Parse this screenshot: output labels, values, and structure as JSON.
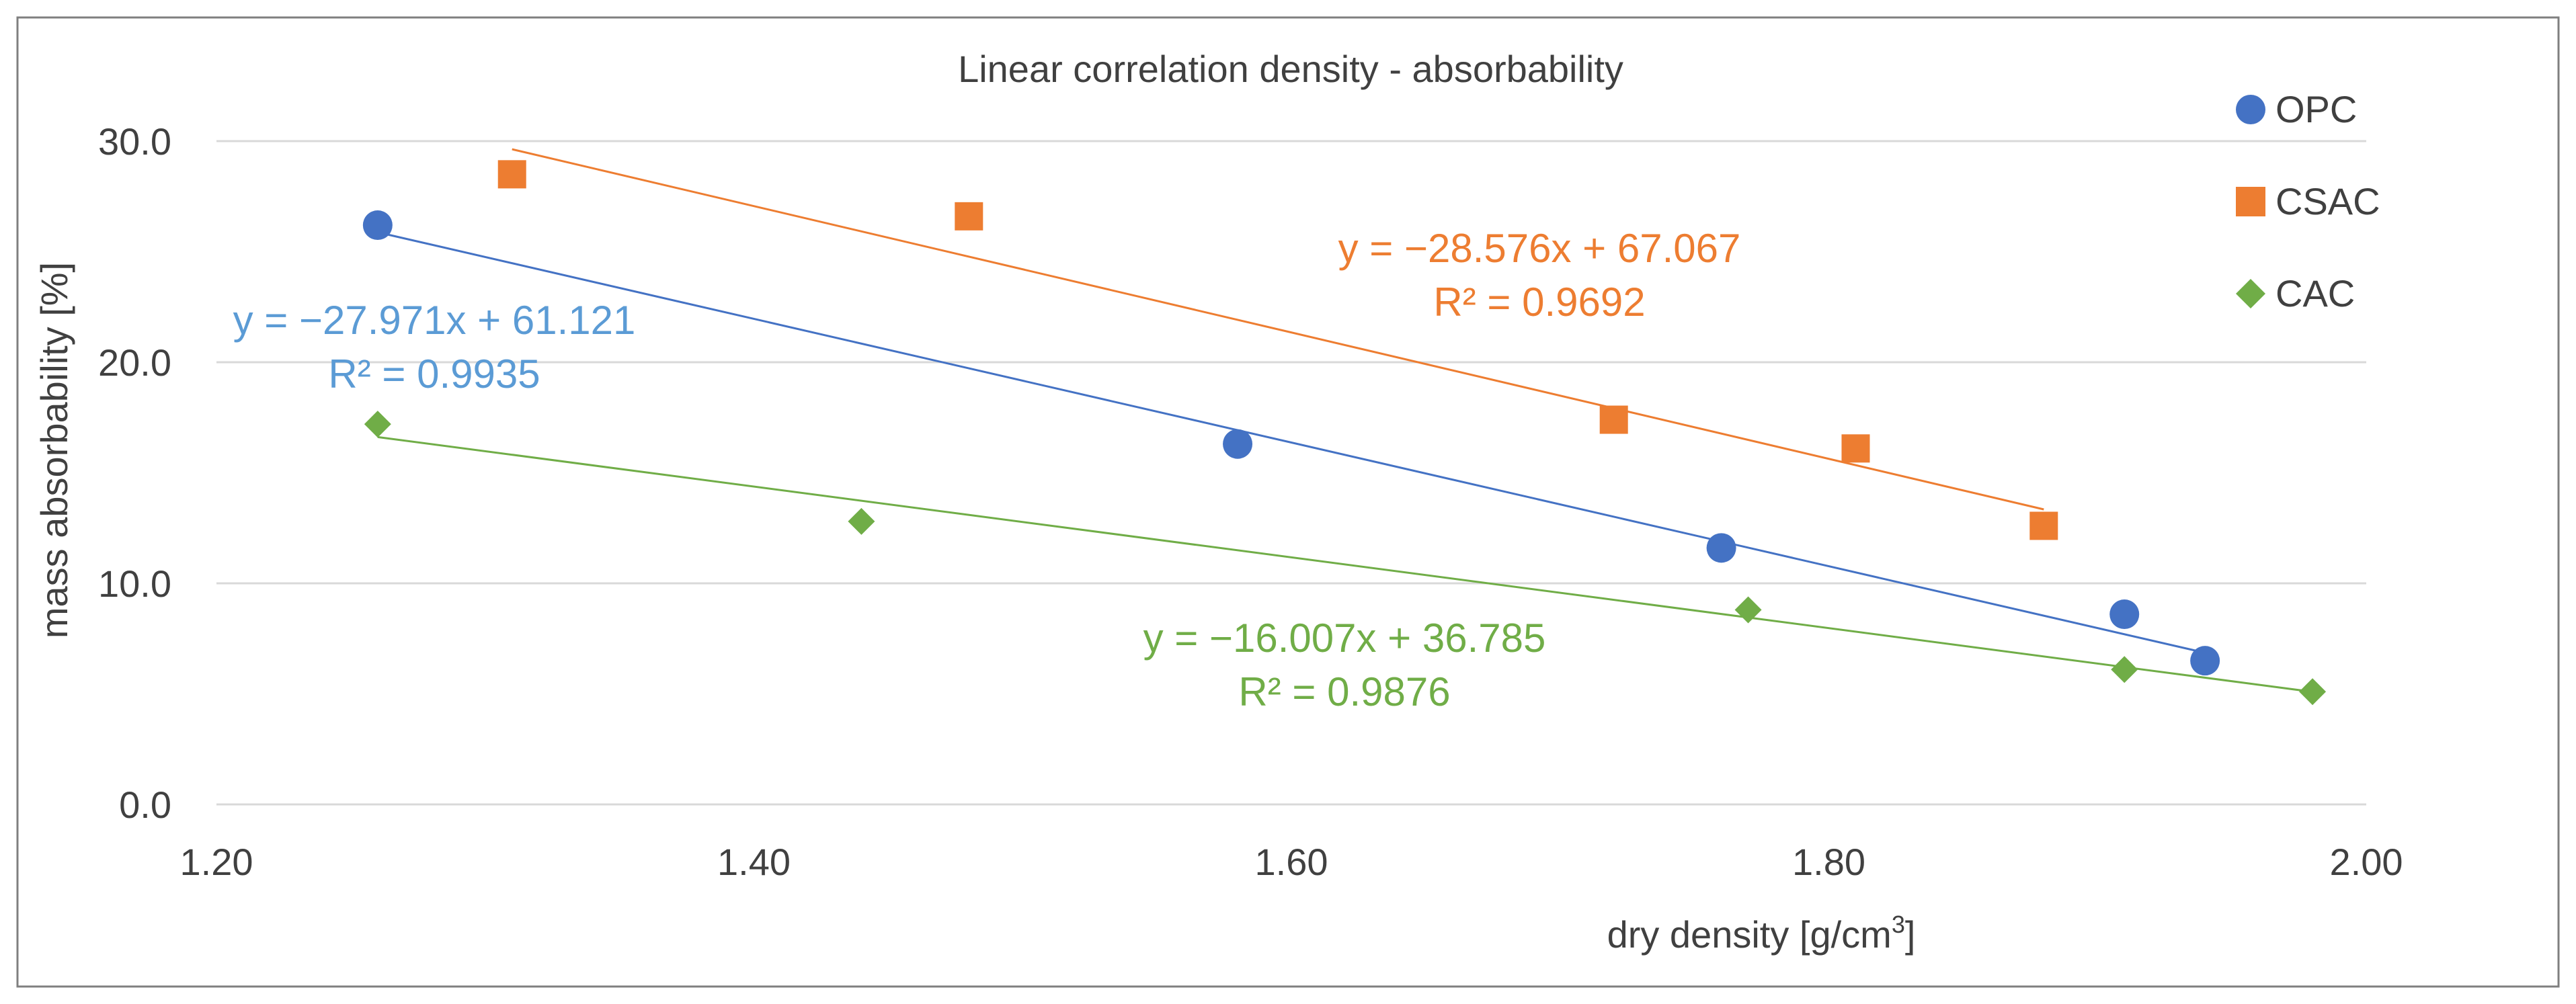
{
  "chart_data": {
    "type": "scatter",
    "title": "Linear correlation density - absorbability",
    "xlabel": "dry density [g/cm",
    "xlabel_sup": "3",
    "xlabel_end": "]",
    "ylabel": "mass absorbability [%]",
    "xlim": [
      1.2,
      2.0
    ],
    "ylim": [
      0.0,
      30.0
    ],
    "x_ticks": [
      1.2,
      1.4,
      1.6,
      1.8,
      2.0
    ],
    "x_tick_labels": [
      "1.20",
      "1.40",
      "1.60",
      "1.80",
      "2.00"
    ],
    "y_ticks": [
      0,
      10,
      20,
      30
    ],
    "y_tick_labels": [
      "0.0",
      "10.0",
      "20.0",
      "30.0"
    ],
    "grid": "horizontal",
    "legend_position": "top-right",
    "series": [
      {
        "name": "OPC",
        "marker": "circle",
        "color": "#4472C4",
        "trend_color": "#4472C4",
        "label_color": "#5B9BD5",
        "x": [
          1.26,
          1.58,
          1.76,
          1.91,
          1.94
        ],
        "y": [
          26.2,
          16.3,
          11.6,
          8.6,
          6.5
        ],
        "trendline": {
          "slope": -27.971,
          "intercept": 61.121,
          "x_range": [
            1.26,
            1.94
          ]
        },
        "equation": "y = −27.971x + 61.121",
        "r_squared": "R² = 0.9935"
      },
      {
        "name": "CSAC",
        "marker": "square",
        "color": "#ED7D31",
        "trend_color": "#ED7D31",
        "label_color": "#ED7D31",
        "x": [
          1.31,
          1.48,
          1.72,
          1.81,
          1.88
        ],
        "y": [
          28.5,
          26.6,
          17.4,
          16.1,
          12.6
        ],
        "trendline": {
          "slope": -28.576,
          "intercept": 67.067,
          "x_range": [
            1.31,
            1.88
          ]
        },
        "equation": "y = −28.576x + 67.067",
        "r_squared": "R² = 0.9692"
      },
      {
        "name": "CAC",
        "marker": "diamond",
        "color": "#70AD47",
        "trend_color": "#70AD47",
        "label_color": "#70AD47",
        "x": [
          1.26,
          1.44,
          1.77,
          1.91,
          1.98
        ],
        "y": [
          17.2,
          12.8,
          8.8,
          6.1,
          5.1
        ],
        "trendline": {
          "slope": -16.007,
          "intercept": 36.785,
          "x_range": [
            1.26,
            1.98
          ]
        },
        "equation": "y = −16.007x + 36.785",
        "r_squared": "R² = 0.9876"
      }
    ]
  }
}
